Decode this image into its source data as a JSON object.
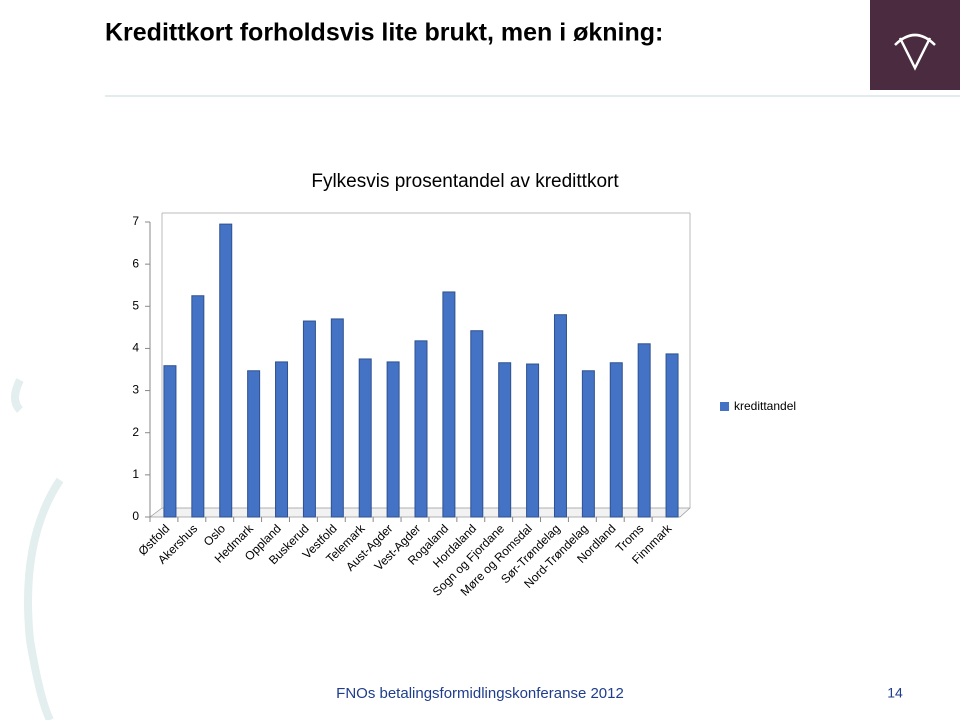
{
  "slide": {
    "title": "Kredittkort forholdsvis lite brukt, men i økning:",
    "footer": "FNOs betalingsformidlingskonferanse 2012",
    "page_number": "14"
  },
  "chart_data": {
    "type": "bar",
    "title": "Fylkesvis prosentandel av kredittkort",
    "categories": [
      "Østfold",
      "Akershus",
      "Oslo",
      "Hedmark",
      "Oppland",
      "Buskerud",
      "Vestfold",
      "Telemark",
      "Aust-Agder",
      "Vest-Agder",
      "Rogaland",
      "Hordaland",
      "Sogn og Fjordane",
      "Møre og Romsdal",
      "Sør-Trøndelag",
      "Nord-Trøndelag",
      "Nordland",
      "Troms",
      "Finnmark"
    ],
    "series": [
      {
        "name": "kredittandel",
        "color": "#4472c4",
        "values": [
          3.59,
          5.25,
          6.95,
          3.47,
          3.68,
          4.65,
          4.7,
          3.75,
          3.68,
          4.18,
          5.34,
          4.42,
          3.66,
          3.63,
          4.8,
          3.47,
          3.66,
          4.11,
          3.87
        ]
      }
    ],
    "ylim": [
      0,
      7
    ],
    "yticks": [
      0,
      1,
      2,
      3,
      4,
      5,
      6,
      7
    ],
    "legend": "right"
  }
}
